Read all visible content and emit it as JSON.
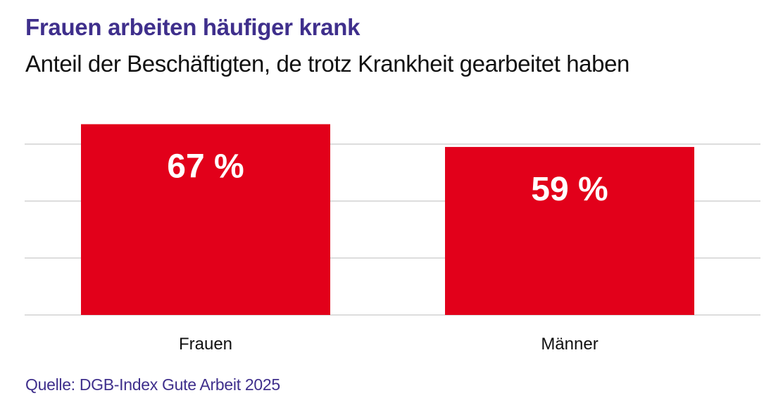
{
  "header": {
    "title": "Frauen arbeiten häufiger krank",
    "subtitle": "Anteil der Beschäftigten, de trotz Krankheit gearbeitet haben"
  },
  "footer": {
    "source": "Quelle: DGB-Index Gute Arbeit 2025"
  },
  "colors": {
    "bar": "#e2001a",
    "title": "#3f2f8c",
    "grid": "#dddddd"
  },
  "chart_data": {
    "type": "bar",
    "title": "Frauen arbeiten häufiger krank",
    "subtitle": "Anteil der Beschäftigten, de trotz Krankheit gearbeitet haben",
    "categories": [
      "Frauen",
      "Männer"
    ],
    "values": [
      67,
      59
    ],
    "value_labels": [
      "67 %",
      "59 %"
    ],
    "unit": "%",
    "xlabel": "",
    "ylabel": "",
    "ylim": [
      0,
      67
    ],
    "gridlines": [
      0,
      20,
      40,
      60
    ],
    "grid": true,
    "y_tick_labels_visible": false,
    "legend": "none"
  }
}
